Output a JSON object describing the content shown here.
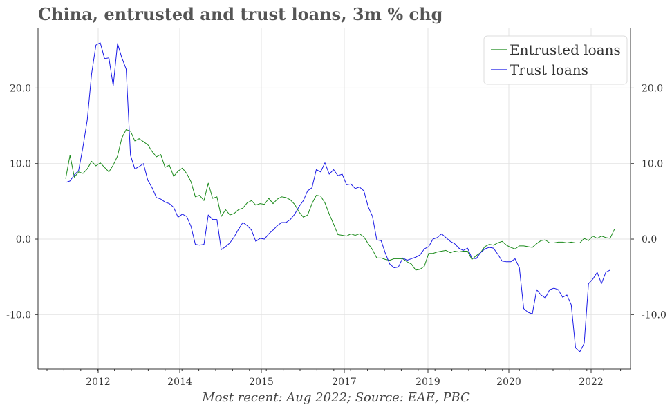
{
  "title": "China, entrusted and trust loans, 3m % chg",
  "source": "Most recent: Aug 2022; Source: EAE, PBC",
  "chart_data": {
    "type": "line",
    "xlabel": "",
    "ylabel": "",
    "x_ticks": [
      "2012",
      "2014",
      "2015",
      "2017",
      "2019",
      "2020",
      "2022"
    ],
    "y_ticks": [
      "-10.0",
      "0.0",
      "10.0",
      "20.0"
    ],
    "ylim": [
      -17.2,
      28
    ],
    "grid": true,
    "legend_position": "top-right",
    "series": [
      {
        "name": "Entrusted loans",
        "color": "#1a8a1a",
        "values": [
          8.0,
          11.1,
          8.2,
          8.9,
          8.7,
          9.3,
          10.3,
          9.7,
          10.1,
          9.5,
          8.9,
          9.8,
          11.0,
          13.4,
          14.5,
          14.3,
          13.0,
          13.3,
          12.9,
          12.5,
          11.6,
          10.9,
          11.2,
          9.5,
          9.8,
          8.3,
          9.0,
          9.4,
          8.7,
          7.6,
          5.6,
          5.8,
          5.1,
          7.4,
          5.4,
          5.6,
          3.0,
          3.9,
          3.2,
          3.4,
          3.9,
          4.1,
          4.8,
          5.1,
          4.5,
          4.7,
          4.6,
          5.4,
          4.7,
          5.3,
          5.6,
          5.5,
          5.2,
          4.6,
          3.6,
          2.9,
          3.2,
          4.7,
          5.8,
          5.7,
          4.8,
          3.3,
          2.0,
          0.6,
          0.5,
          0.4,
          0.7,
          0.5,
          0.7,
          0.3,
          -0.6,
          -1.4,
          -2.5,
          -2.5,
          -2.7,
          -2.8,
          -2.6,
          -2.6,
          -2.6,
          -3.0,
          -3.3,
          -4.1,
          -4.0,
          -3.6,
          -1.9,
          -1.9,
          -1.7,
          -1.6,
          -1.5,
          -1.8,
          -1.6,
          -1.7,
          -1.6,
          -1.6,
          -2.7,
          -2.2,
          -1.8,
          -1.0,
          -0.7,
          -0.8,
          -0.5,
          -0.3,
          -0.8,
          -1.1,
          -1.3,
          -0.9,
          -0.9,
          -1.0,
          -1.1,
          -0.6,
          -0.2,
          -0.1,
          -0.5,
          -0.5,
          -0.4,
          -0.4,
          -0.5,
          -0.4,
          -0.5,
          -0.5,
          0.1,
          -0.2,
          0.4,
          0.1,
          0.4,
          0.2,
          0.1,
          1.3
        ]
      },
      {
        "name": "Trust loans",
        "color": "#1a1ae6",
        "values": [
          7.5,
          7.7,
          8.5,
          9.1,
          12.2,
          15.8,
          21.9,
          25.7,
          26.0,
          23.9,
          24.0,
          20.3,
          25.9,
          24.0,
          22.5,
          11.1,
          9.3,
          9.6,
          10.0,
          7.8,
          6.8,
          5.5,
          5.3,
          4.9,
          4.7,
          4.2,
          2.9,
          3.3,
          3.0,
          1.7,
          -0.7,
          -0.8,
          -0.7,
          3.2,
          2.6,
          2.6,
          -1.4,
          -1.0,
          -0.5,
          0.3,
          1.3,
          2.2,
          1.8,
          1.2,
          -0.3,
          0.1,
          0.0,
          0.7,
          1.2,
          1.8,
          2.2,
          2.2,
          2.6,
          3.3,
          4.3,
          5.1,
          6.4,
          6.8,
          9.2,
          8.9,
          10.1,
          8.6,
          9.2,
          8.4,
          8.6,
          7.2,
          7.3,
          6.7,
          6.9,
          6.4,
          4.3,
          3.0,
          -0.1,
          -0.2,
          -1.9,
          -3.3,
          -3.8,
          -3.7,
          -2.5,
          -2.8,
          -2.6,
          -2.4,
          -2.1,
          -1.3,
          -1.0,
          0.0,
          0.2,
          0.7,
          0.2,
          -0.3,
          -0.6,
          -1.2,
          -1.5,
          -1.2,
          -2.5,
          -2.6,
          -1.8,
          -1.3,
          -1.1,
          -1.2,
          -2.0,
          -2.9,
          -3.0,
          -3.0,
          -2.6,
          -3.8,
          -9.2,
          -9.7,
          -9.9,
          -6.7,
          -7.4,
          -7.8,
          -6.7,
          -6.5,
          -6.7,
          -7.7,
          -7.4,
          -8.7,
          -14.4,
          -14.9,
          -13.8,
          -5.9,
          -5.3,
          -4.4,
          -5.9,
          -4.4,
          -4.1
        ]
      }
    ]
  }
}
